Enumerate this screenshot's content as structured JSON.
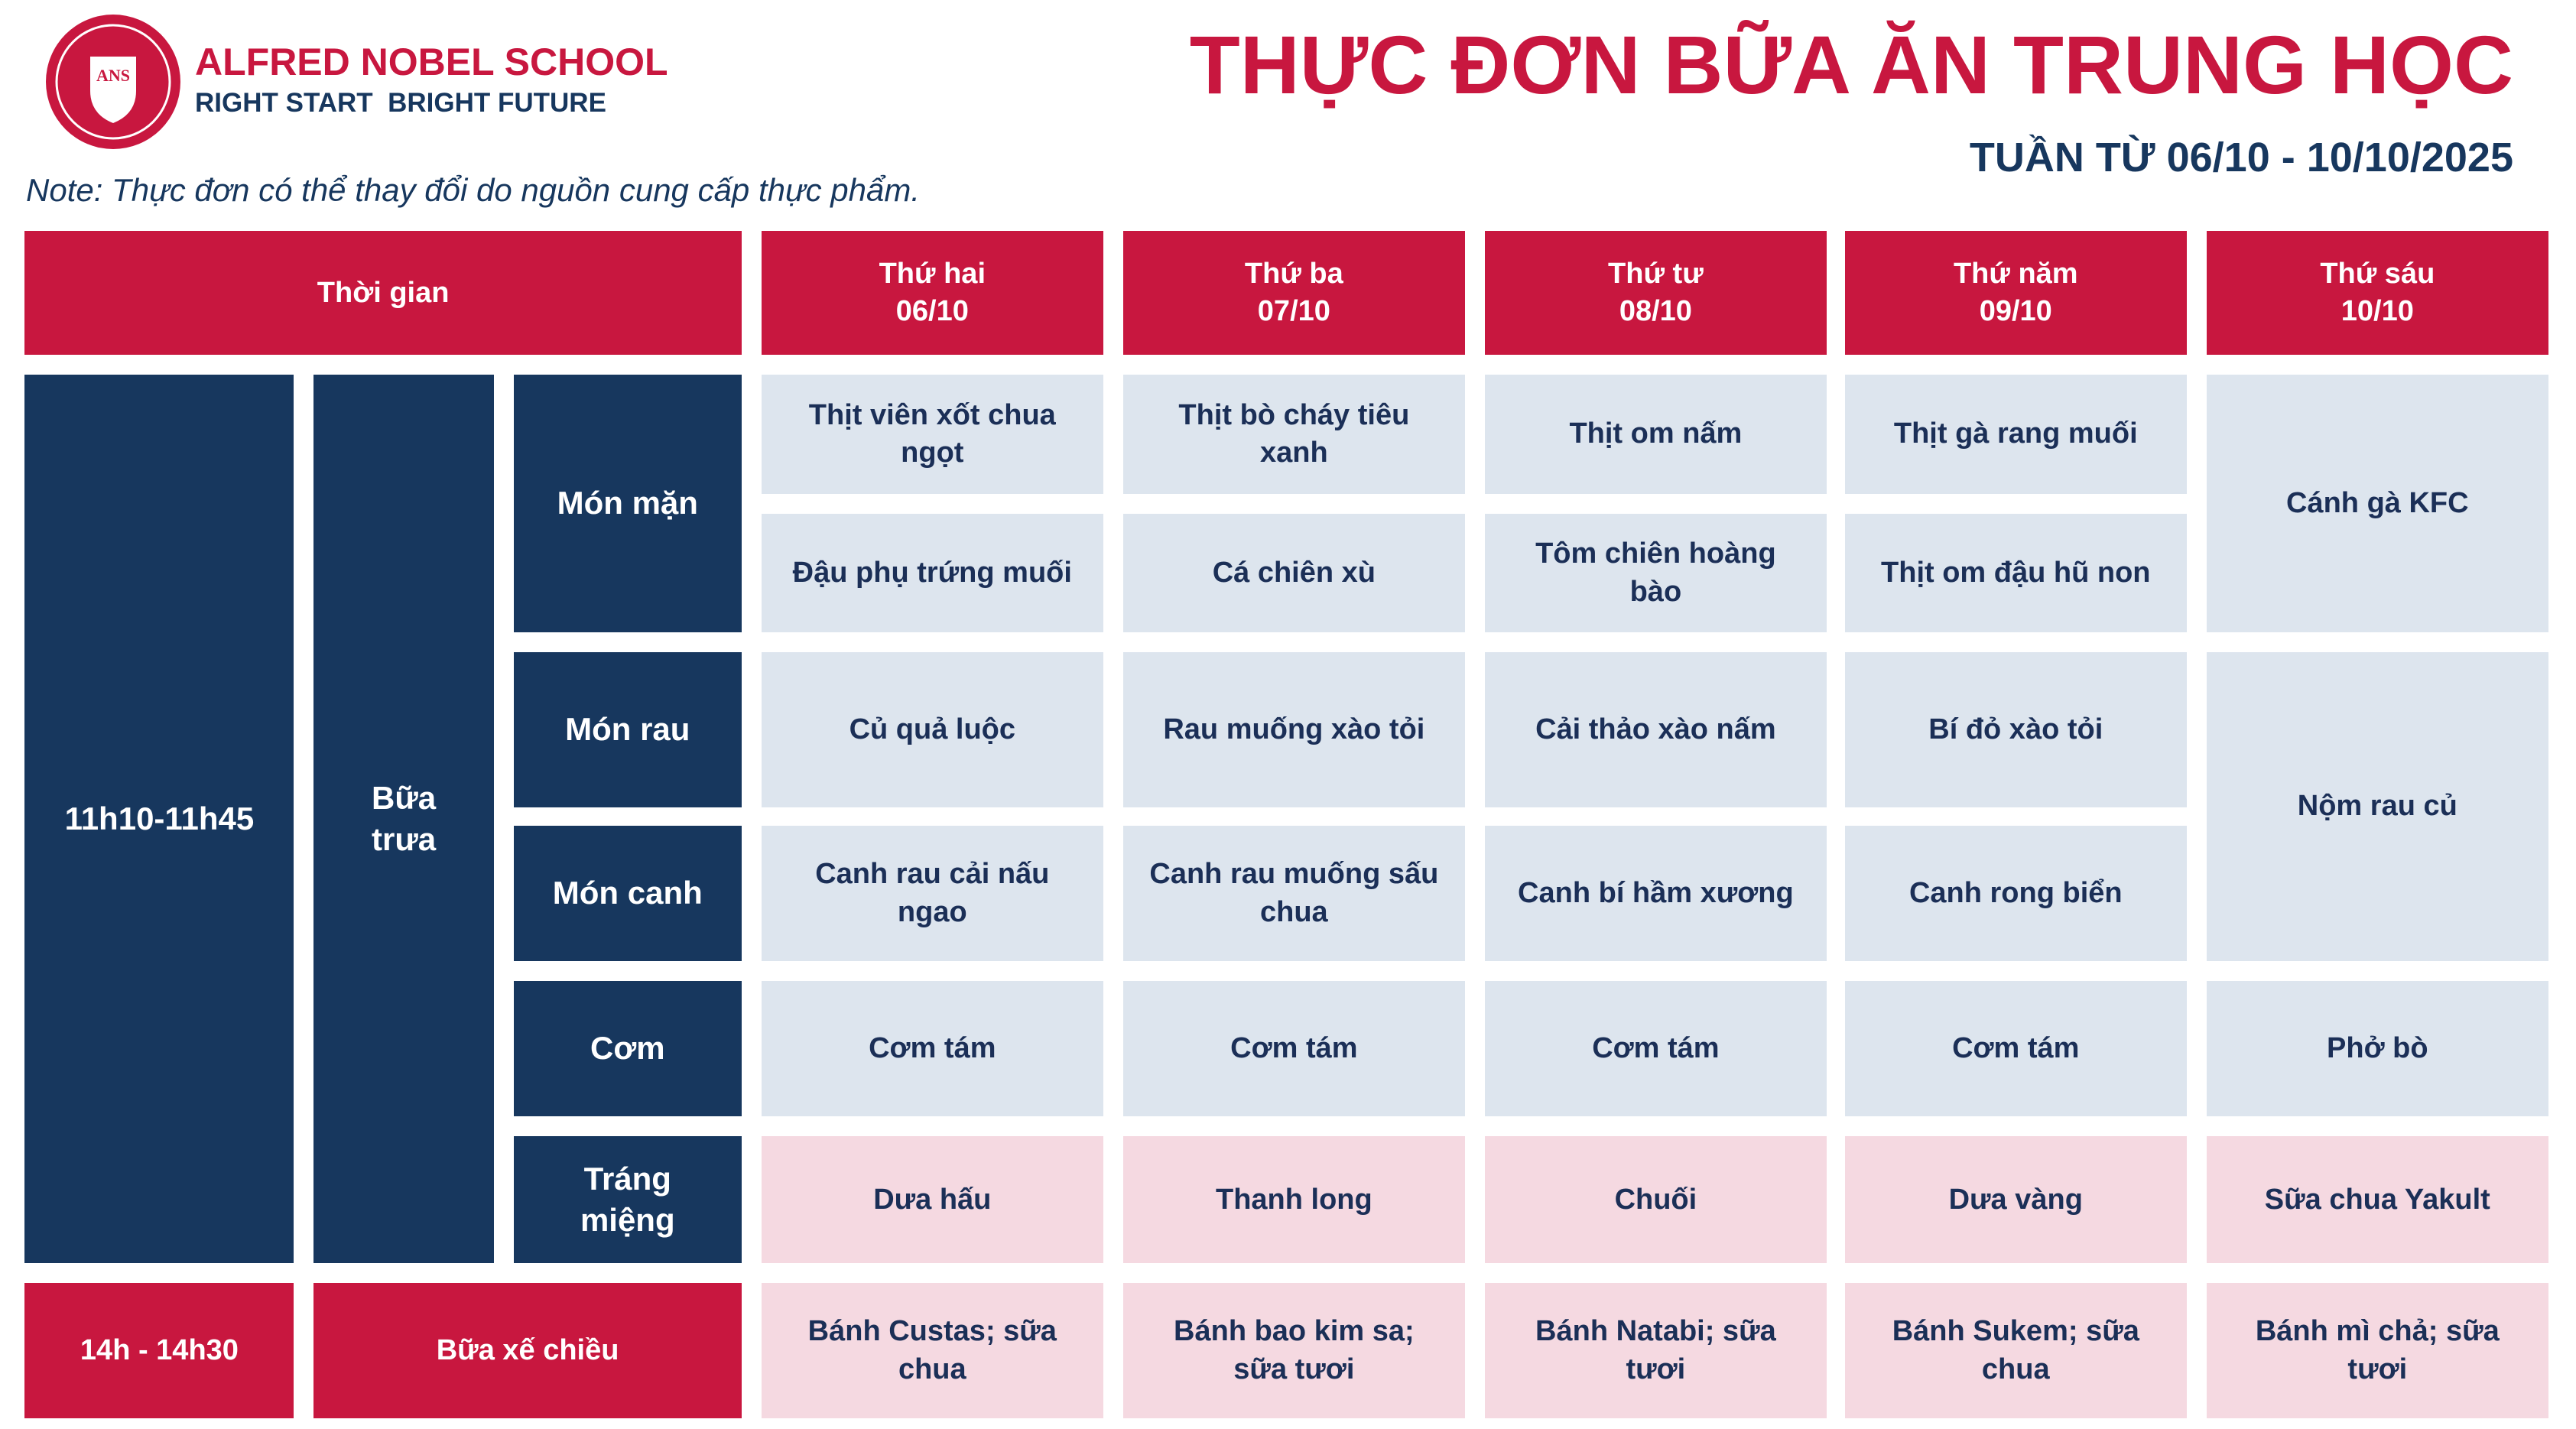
{
  "header": {
    "school_name": "ALFRED NOBEL SCHOOL",
    "tagline": "RIGHT START  BRIGHT FUTURE",
    "logo_initials": "ANS",
    "title": "THỰC ĐƠN BỮA ĂN TRUNG HỌC",
    "week": "TUẦN TỪ 06/10 - 10/10/2025",
    "note": "Note: Thực đơn có thể thay đổi do nguồn cung cấp thực phẩm."
  },
  "table": {
    "time_header": "Thời gian",
    "days": [
      {
        "name": "Thứ hai",
        "date": "06/10",
        "lunch": [
          "Thịt viên xốt chua ngọt",
          "Đậu phụ trứng muối",
          "Củ quả luộc",
          "Canh rau cải nấu ngao",
          "Cơm tám",
          "Dưa hấu"
        ],
        "snack": "Bánh Custas; sữa chua"
      },
      {
        "name": "Thứ ba",
        "date": "07/10",
        "lunch": [
          "Thịt bò cháy tiêu xanh",
          "Cá chiên xù",
          "Rau muống xào tỏi",
          "Canh rau muống sấu chua",
          "Cơm tám",
          "Thanh long"
        ],
        "snack": "Bánh bao kim sa; sữa tươi"
      },
      {
        "name": "Thứ tư",
        "date": "08/10",
        "lunch": [
          "Thịt om nấm",
          "Tôm chiên hoàng bào",
          "Cải thảo xào nấm",
          "Canh bí hầm xương",
          "Cơm tám",
          "Chuối"
        ],
        "snack": "Bánh Natabi; sữa tươi"
      },
      {
        "name": "Thứ năm",
        "date": "09/10",
        "lunch": [
          "Thịt gà rang muối",
          "Thịt om đậu hũ non",
          "Bí đỏ xào tỏi",
          "Canh rong biển",
          "Cơm tám",
          "Dưa vàng"
        ],
        "snack": "Bánh Sukem; sữa chua"
      },
      {
        "name": "Thứ sáu",
        "date": "10/10",
        "lunch": [
          "Cánh gà KFC",
          "Nộm rau củ",
          "Phở bò",
          "Sữa chua Yakult"
        ],
        "snack": "Bánh mì chả; sữa tươi"
      }
    ],
    "lunch": {
      "time": "11h10-11h45",
      "meal": "Bữa trưa",
      "categories": [
        "Món mặn",
        "Món rau",
        "Món canh",
        "Cơm",
        "Tráng miệng"
      ]
    },
    "snack": {
      "time": "14h - 14h30",
      "meal": "Bữa xế chiều"
    }
  }
}
